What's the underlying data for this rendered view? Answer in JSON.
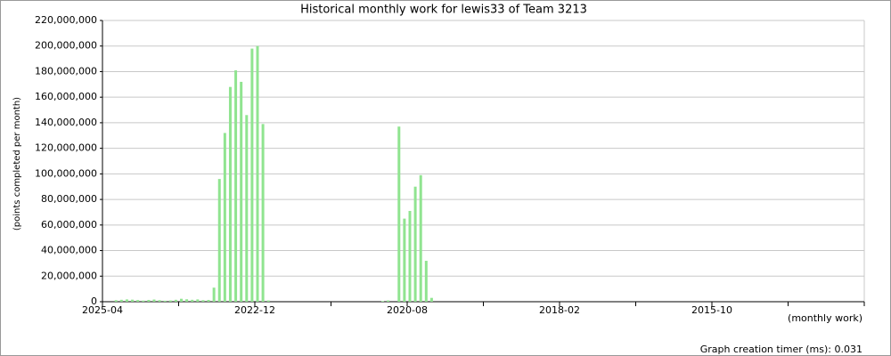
{
  "chart_data": {
    "type": "bar",
    "title": "Historical monthly work for lewis33 of Team 3213",
    "y_label": "(points completed per month)",
    "x_label": "(monthly work)",
    "footer": "Graph creation timer (ms): 0.031",
    "color": "#90e490",
    "grid": true,
    "categories": [
      "2025-04",
      null,
      null,
      null,
      null,
      null,
      null,
      null,
      null,
      null,
      null,
      null,
      null,
      null,
      null,
      null,
      null,
      null,
      null,
      null,
      null,
      null,
      null,
      null,
      null,
      null,
      null,
      null,
      "2022-12",
      null,
      null,
      null,
      null,
      null,
      null,
      null,
      null,
      null,
      null,
      null,
      null,
      null,
      null,
      null,
      null,
      null,
      null,
      null,
      null,
      null,
      null,
      null,
      null,
      null,
      null,
      null,
      "2020-08",
      null,
      null,
      null,
      null,
      null,
      null,
      null,
      null,
      null,
      null,
      null,
      null,
      null,
      null,
      null,
      null,
      null,
      null,
      null,
      null,
      null,
      null,
      null,
      null,
      null,
      null,
      null,
      "2018-02",
      null,
      null,
      null,
      null,
      null,
      null,
      null,
      null,
      null,
      null,
      null,
      null,
      null,
      null,
      null,
      null,
      null,
      null,
      null,
      null,
      null,
      null,
      null,
      null,
      null,
      null,
      null,
      "2015-10",
      null,
      null,
      null,
      null,
      null,
      null,
      null,
      null,
      null,
      null,
      null,
      null,
      null,
      null,
      null,
      null,
      null,
      null,
      null,
      null,
      null,
      null,
      null,
      null,
      null,
      null,
      null
    ],
    "values": [
      0,
      0,
      1200000,
      1500000,
      1800000,
      1600000,
      1300000,
      900000,
      1400000,
      1700000,
      1200000,
      800000,
      1000000,
      1500000,
      2300000,
      1900000,
      1500000,
      1800000,
      1200000,
      1400000,
      11000000,
      96000000,
      132000000,
      168000000,
      181000000,
      172000000,
      146000000,
      198000000,
      200000000,
      139000000,
      1000000,
      0,
      0,
      0,
      0,
      0,
      0,
      0,
      0,
      0,
      0,
      0,
      0,
      0,
      0,
      0,
      0,
      0,
      0,
      0,
      0,
      500000,
      1000000,
      0,
      137000000,
      65000000,
      71000000,
      90000000,
      99000000,
      32000000,
      3000000,
      0,
      0,
      0,
      0,
      0,
      0,
      0,
      0,
      0,
      0,
      0,
      0,
      0,
      0,
      0,
      0,
      0,
      0,
      0,
      0,
      0,
      0,
      0,
      0,
      0,
      0,
      0,
      0,
      0,
      0,
      0,
      0,
      0,
      0,
      0,
      0,
      0,
      0,
      0,
      0,
      0,
      0,
      0,
      0,
      0,
      0,
      0,
      0,
      0,
      0,
      0,
      0,
      0,
      0,
      0,
      0,
      0,
      0,
      0,
      0,
      0,
      0,
      0,
      0,
      0,
      0,
      0,
      0,
      0,
      0,
      0,
      0,
      0,
      0,
      0,
      0,
      0,
      0,
      0
    ],
    "ylim": [
      0,
      220000000
    ],
    "yticks": [
      {
        "value": 0,
        "label": "0"
      },
      {
        "value": 20000000,
        "label": "20,000,000"
      },
      {
        "value": 40000000,
        "label": "40,000,000"
      },
      {
        "value": 60000000,
        "label": "60,000,000"
      },
      {
        "value": 80000000,
        "label": "80,000,000"
      },
      {
        "value": 100000000,
        "label": "100,000,000"
      },
      {
        "value": 120000000,
        "label": "120,000,000"
      },
      {
        "value": 140000000,
        "label": "140,000,000"
      },
      {
        "value": 160000000,
        "label": "160,000,000"
      },
      {
        "value": 180000000,
        "label": "180,000,000"
      },
      {
        "value": 200000000,
        "label": "200,000,000"
      },
      {
        "value": 220000000,
        "label": "220,000,000"
      }
    ]
  }
}
